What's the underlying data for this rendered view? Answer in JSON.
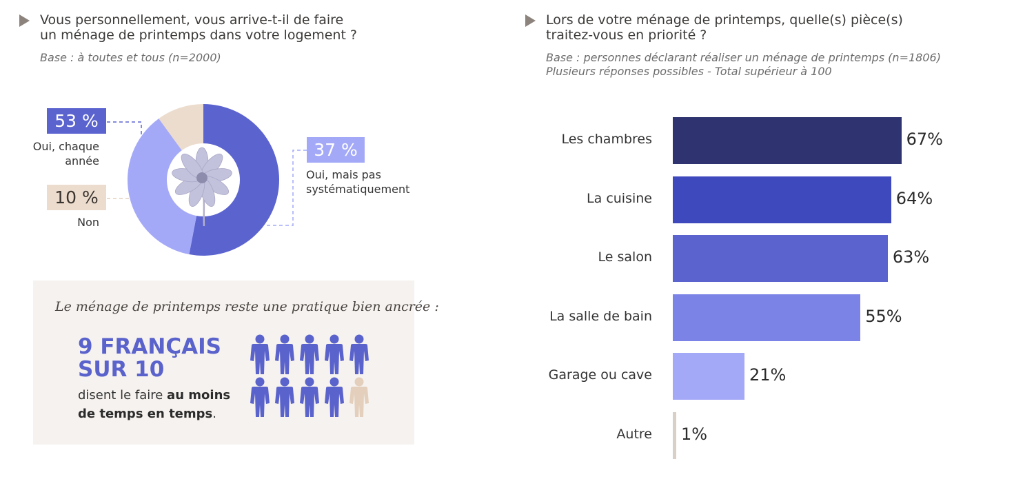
{
  "left": {
    "question_line1": "Vous personnellement, vous arrive-t-il de faire",
    "question_line2": "un ménage de printemps dans votre logement ?",
    "base": "Base : à toutes et tous (n=2000)",
    "donut": {
      "slices": [
        {
          "label_line1": "Oui, chaque",
          "label_line2": "année",
          "value": 53,
          "display": "53 %",
          "color": "#5b63cf"
        },
        {
          "label_line1": "Oui, mais pas",
          "label_line2": "systématiquement",
          "value": 37,
          "display": "37 %",
          "color": "#a4a9f7"
        },
        {
          "label_line1": "Non",
          "label_line2": "",
          "value": 10,
          "display": "10 %",
          "color": "#ecdccd"
        }
      ]
    },
    "callout": {
      "title": "Le ménage de printemps reste une pratique bien ancrée :",
      "stat_line1": "9 FRANÇAIS",
      "stat_line2": "SUR 10",
      "sub_line1_plain": "disent le faire ",
      "sub_line1_bold": "au moins",
      "sub_line2_bold": "de temps en temps",
      "sub_line2_plain": ".",
      "pictogram": {
        "filled": 9,
        "total": 10,
        "filled_color": "#5a62cc",
        "empty_color": "#e3cfbb"
      }
    }
  },
  "right": {
    "question_line1": "Lors de votre ménage de printemps, quelle(s) pièce(s)",
    "question_line2": "traitez-vous en priorité ?",
    "base_line1": "Base : personnes déclarant réaliser un ménage de printemps (n=1806)",
    "base_line2": "Plusieurs réponses possibles - Total supérieur à 100"
  },
  "chart_data": [
    {
      "type": "pie",
      "variant": "donut",
      "categories": [
        "Oui, chaque année",
        "Oui, mais pas systématiquement",
        "Non"
      ],
      "values": [
        53,
        37,
        10
      ],
      "unit": "%"
    },
    {
      "type": "bar",
      "orientation": "horizontal",
      "categories": [
        "Les chambres",
        "La cuisine",
        "Le salon",
        "La salle de bain",
        "Garage ou cave",
        "Autre"
      ],
      "values": [
        67,
        64,
        63,
        55,
        21,
        1
      ],
      "value_labels": [
        "67%",
        "64%",
        "63%",
        "55%",
        "21%",
        "1%"
      ],
      "colors": [
        "#2f3470",
        "#3f49be",
        "#5b63cf",
        "#7b83e6",
        "#a4a9f7",
        "#d8cfc7"
      ],
      "xlim": [
        0,
        100
      ],
      "unit": "%"
    }
  ]
}
